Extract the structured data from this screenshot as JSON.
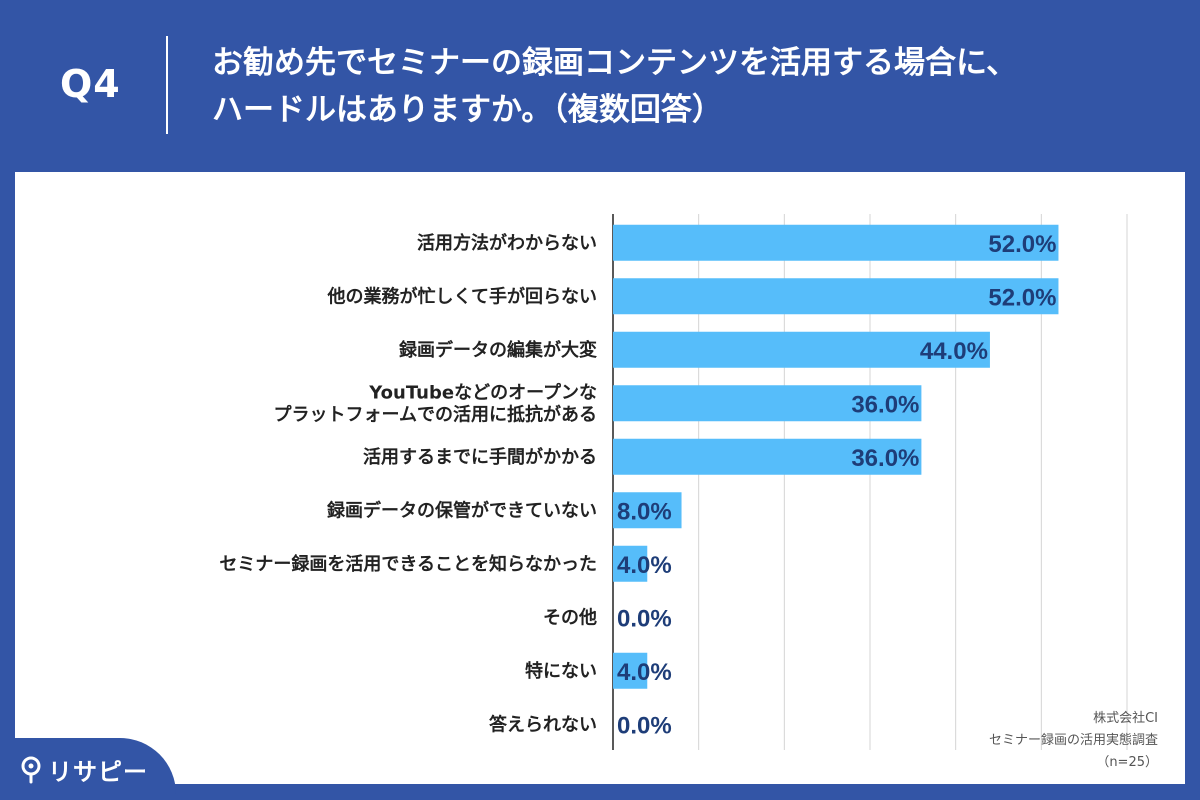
{
  "header": {
    "q_label": "Q4",
    "title_line1": "お勧め先でセミナーの録画コンテンツを活用する場合に、",
    "title_line2": "ハードルはありますか。（複数回答）"
  },
  "chart_data": {
    "type": "bar",
    "orientation": "horizontal",
    "categories": [
      "活用方法がわからない",
      "他の業務が忙しくて手が回らない",
      "録画データの編集が大変",
      "YouTubeなどのオープンな\nプラットフォームでの活用に抵抗がある",
      "活用するまでに手間がかかる",
      "録画データの保管ができていない",
      "セミナー録画を活用できることを知らなかった",
      "その他",
      "特にない",
      "答えられない"
    ],
    "values": [
      52.0,
      52.0,
      44.0,
      36.0,
      36.0,
      8.0,
      4.0,
      0.0,
      4.0,
      0.0
    ],
    "value_labels": [
      "52.0%",
      "52.0%",
      "44.0%",
      "36.0%",
      "36.0%",
      "8.0%",
      "4.0%",
      "0.0%",
      "4.0%",
      "0.0%"
    ],
    "xlim": [
      0,
      60
    ],
    "grid": true,
    "bar_color": "#56bdfa",
    "label_color": "#1e3d78"
  },
  "footer": {
    "company": "株式会社CI",
    "survey": "セミナー録画の活用実態調査",
    "sample": "（n=25）"
  },
  "logo": {
    "icon": "pin-icon",
    "text": "リサピー"
  },
  "colors": {
    "header_bg": "#3355a6",
    "panel_bg": "#ffffff"
  }
}
